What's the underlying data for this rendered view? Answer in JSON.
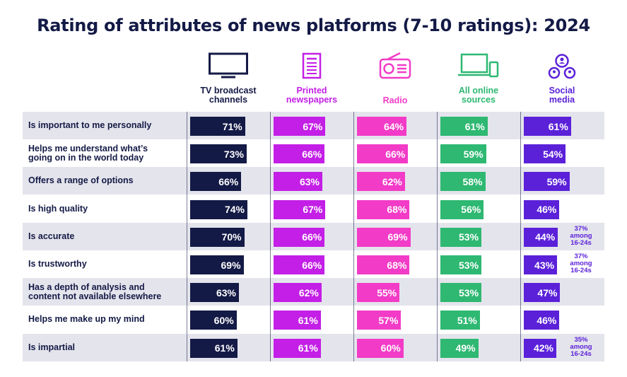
{
  "chart_data": {
    "type": "bar",
    "title": "Rating of attributes of news platforms (7-10 ratings): 2024",
    "categories": [
      "Is important to me personally",
      "Helps me understand what’s going on in the world today",
      "Offers a range of options",
      "Is high quality",
      "Is accurate",
      "Is trustworthy",
      "Has a depth of analysis and content not available elsewhere",
      "Helps me make up my mind",
      "Is impartial"
    ],
    "series": [
      {
        "name": "TV broadcast channels",
        "icon": "tv-icon",
        "color": "#141a46",
        "values": [
          71,
          73,
          66,
          74,
          70,
          69,
          63,
          60,
          61
        ]
      },
      {
        "name": "Printed newspapers",
        "icon": "newspaper-icon",
        "color": "#c31fe6",
        "values": [
          67,
          66,
          63,
          67,
          66,
          66,
          62,
          61,
          61
        ]
      },
      {
        "name": "Radio",
        "icon": "radio-icon",
        "color": "#f23bc7",
        "values": [
          64,
          66,
          62,
          68,
          69,
          68,
          55,
          57,
          60
        ]
      },
      {
        "name": "All online sources",
        "icon": "laptop-phone-icon",
        "color": "#2eb872",
        "values": [
          61,
          59,
          58,
          56,
          53,
          53,
          53,
          51,
          49
        ]
      },
      {
        "name": "Social media",
        "icon": "social-network-icon",
        "color": "#5b21d9",
        "values": [
          61,
          54,
          59,
          46,
          44,
          43,
          47,
          46,
          42
        ]
      }
    ],
    "value_suffix": "%",
    "annotations": [
      {
        "row": 4,
        "series": 4,
        "text": [
          "37%",
          "among",
          "16-24s"
        ]
      },
      {
        "row": 5,
        "series": 4,
        "text": [
          "37%",
          "among",
          "16-24s"
        ]
      },
      {
        "row": 8,
        "series": 4,
        "text": [
          "35%",
          "among",
          "16-24s"
        ]
      }
    ],
    "label_color": "#141a46",
    "row_shading": "#e4e4ec"
  }
}
